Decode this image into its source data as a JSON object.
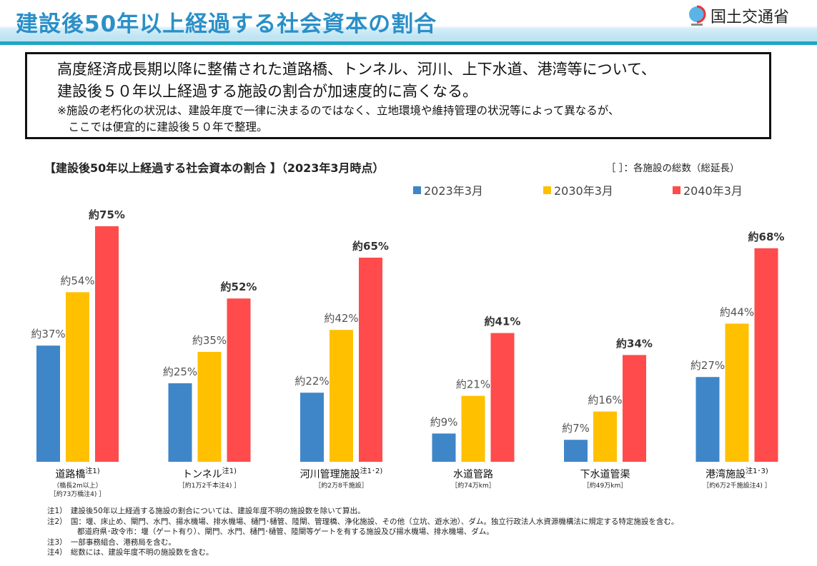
{
  "header": {
    "title": "建設後50年以上経過する社会資本の割合",
    "org": "国土交通省"
  },
  "summary": {
    "line1": "高度経済成長期以降に整備された道路橋、トンネル、河川、上下水道、港湾等について、",
    "line2": "建設後５０年以上経過する施設の割合が加速度的に高くなる。",
    "line3": "※施設の老朽化の状況は、建設年度で一律に決まるのではなく、立地環境や維持管理の状況等によって異なるが、",
    "line4": "　ここでは便宜的に建設後５０年で整理。"
  },
  "chart_data": {
    "type": "bar",
    "title": "【建設後50年以上経過する社会資本の割合 】（2023年3月時点）",
    "note": "［ ］：各施設の総数（総延長）",
    "categories": [
      "道路橋",
      "トンネル",
      "河川管理施設",
      "水道管路",
      "下水道管渠",
      "港湾施設"
    ],
    "category_notes": [
      "注1)",
      "注1)",
      "注1･2)",
      "",
      "",
      "注1･3)"
    ],
    "category_sub": [
      [
        "（橋長2m以上）",
        "［約73万橋注4) ］"
      ],
      [
        "［約1万2千本注4) ］"
      ],
      [
        "［約2万8千施設］"
      ],
      [
        "［約74万km］"
      ],
      [
        "［約49万km］"
      ],
      [
        "［約6万2千施設注4) ］"
      ]
    ],
    "series": [
      {
        "name": "2023年3月",
        "color": "#3f86c8",
        "values": [
          37,
          25,
          22,
          9,
          7,
          27
        ]
      },
      {
        "name": "2030年3月",
        "color": "#ffc000",
        "values": [
          54,
          35,
          42,
          21,
          16,
          44
        ]
      },
      {
        "name": "2040年3月",
        "color": "#ff4b4b",
        "values": [
          75,
          52,
          65,
          41,
          34,
          68
        ]
      }
    ],
    "label_prefix": "約",
    "label_suffix": "%",
    "ylim": [
      0,
      80
    ]
  },
  "footnotes": [
    "注1）　建設後50年以上経過する施設の割合については、建設年度不明の施設数を除いて算出。",
    "注2）　国：堰、床止め、閘門、水門、揚水機場、排水機場、樋門･樋管、陸閘、管理橋、浄化施設、その他（立坑、遊水池）、ダム。独立行政法人水資源機構法に規定する特定施設を含む。",
    "　　　　都道府県･政令市：堰（ゲート有り）、閘門、水門、樋門･樋管、陸閘等ゲートを有する施設及び揚水機場、排水機場、ダム。",
    "注3）　一部事務組合、港務局を含む。",
    "注4）　総数には、建設年度不明の施設数を含む。"
  ]
}
